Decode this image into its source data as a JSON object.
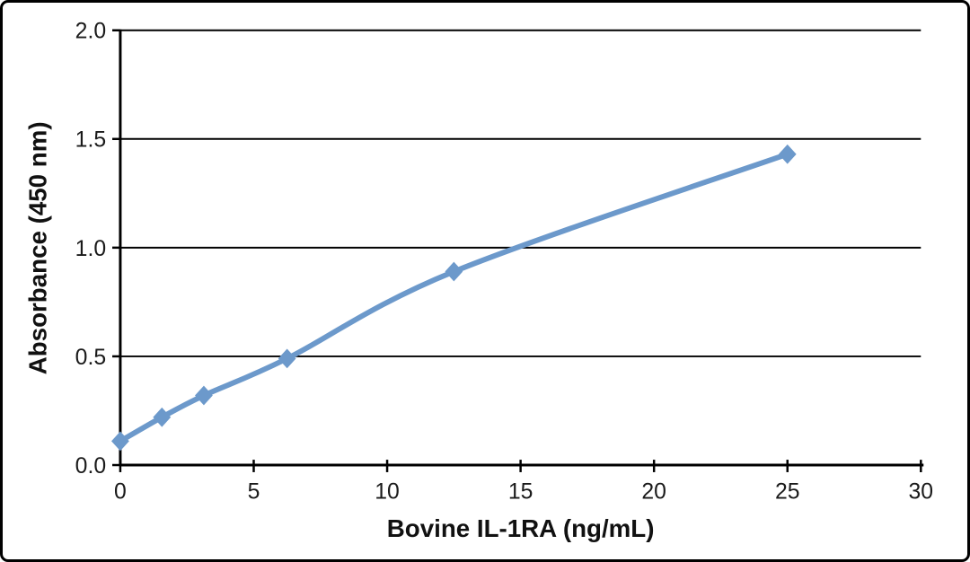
{
  "figure": {
    "background": "#ffffff",
    "border_color": "#000000"
  },
  "chart_data": {
    "type": "line",
    "title": "",
    "xlabel": "Bovine IL-1RA (ng/mL)",
    "ylabel": "Absorbance (450 nm)",
    "series": [
      {
        "x": [
          0,
          1.56,
          3.13,
          6.25,
          12.5,
          25
        ],
        "y": [
          0.11,
          0.22,
          0.32,
          0.49,
          0.89,
          1.43
        ],
        "color": "#6c99cb",
        "marker": "diamond",
        "smooth": true,
        "line_width": 6,
        "marker_size": 10
      }
    ],
    "xlim": [
      0,
      30
    ],
    "ylim": [
      0,
      2
    ],
    "xticks": [
      0,
      5,
      10,
      15,
      20,
      25,
      30
    ],
    "xtick_labels": [
      "0",
      "5",
      "10",
      "15",
      "20",
      "25",
      "30"
    ],
    "yticks": [
      0,
      0.5,
      1,
      1.5,
      2
    ],
    "ytick_labels": [
      "0.0",
      "0.5",
      "1.0",
      "1.5",
      "2.0"
    ],
    "grid": "horizontal-only",
    "legend_position": "none",
    "axis_color": "#000000",
    "gridline_color": "#000000"
  }
}
